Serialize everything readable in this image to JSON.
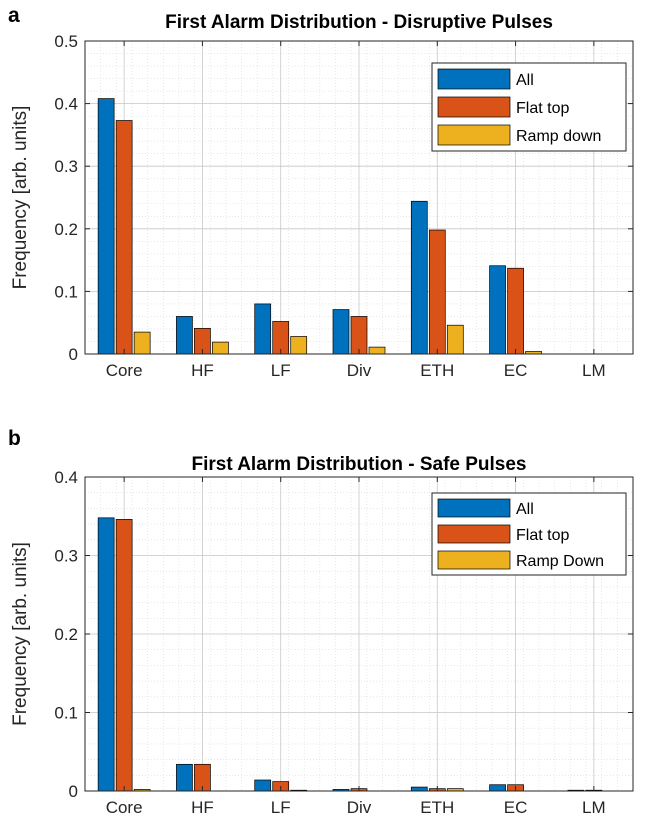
{
  "chart_data": [
    {
      "type": "bar",
      "panel_label": "a",
      "title": "First Alarm Distribution - Disruptive Pulses",
      "xlabel": "",
      "ylabel": "Frequency [arb. units]",
      "categories": [
        "Core",
        "HF",
        "LF",
        "Div",
        "ETH",
        "EC",
        "LM"
      ],
      "ylim": [
        0,
        0.5
      ],
      "yticks": [
        "0",
        "0.1",
        "0.2",
        "0.3",
        "0.4",
        "0.5"
      ],
      "yticks_values": [
        0,
        0.1,
        0.2,
        0.3,
        0.4,
        0.5
      ],
      "grid": true,
      "minor_grid": true,
      "legend_position": "top-right",
      "series": [
        {
          "name": "All",
          "color": "#0072BD",
          "values": [
            0.408,
            0.06,
            0.08,
            0.071,
            0.244,
            0.141,
            0.0
          ]
        },
        {
          "name": "Flat top",
          "color": "#D95319",
          "values": [
            0.373,
            0.041,
            0.052,
            0.06,
            0.198,
            0.137,
            0.0
          ]
        },
        {
          "name": "Ramp down",
          "color": "#EDB120",
          "values": [
            0.035,
            0.019,
            0.028,
            0.011,
            0.046,
            0.004,
            0.0
          ]
        }
      ]
    },
    {
      "type": "bar",
      "panel_label": "b",
      "title": "First Alarm Distribution - Safe Pulses",
      "xlabel": "",
      "ylabel": "Frequency [arb. units]",
      "categories": [
        "Core",
        "HF",
        "LF",
        "Div",
        "ETH",
        "EC",
        "LM"
      ],
      "ylim": [
        0,
        0.4
      ],
      "yticks": [
        "0",
        "0.1",
        "0.2",
        "0.3",
        "0.4"
      ],
      "yticks_values": [
        0,
        0.1,
        0.2,
        0.3,
        0.4
      ],
      "grid": true,
      "minor_grid": true,
      "legend_position": "top-right",
      "series": [
        {
          "name": "All",
          "color": "#0072BD",
          "values": [
            0.348,
            0.034,
            0.014,
            0.002,
            0.005,
            0.008,
            0.001
          ]
        },
        {
          "name": "Flat top",
          "color": "#D95319",
          "values": [
            0.346,
            0.034,
            0.012,
            0.003,
            0.003,
            0.008,
            0.001
          ]
        },
        {
          "name": "Ramp Down",
          "color": "#EDB120",
          "values": [
            0.002,
            0.0,
            0.001,
            0.0,
            0.003,
            0.0,
            0.0
          ]
        }
      ]
    }
  ]
}
